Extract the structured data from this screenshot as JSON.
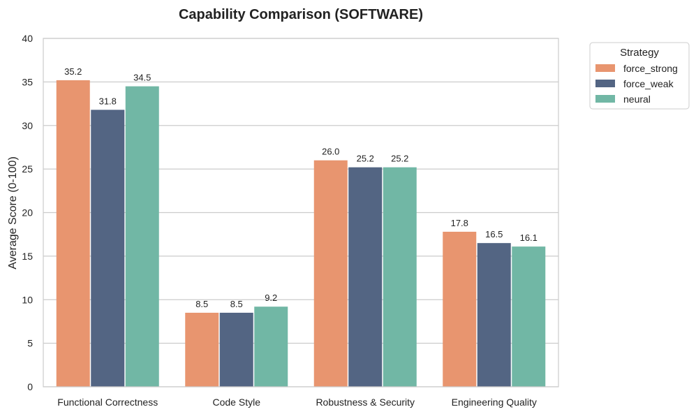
{
  "chart_data": {
    "type": "bar",
    "title": "Capability Comparison (SOFTWARE)",
    "xlabel": "",
    "ylabel": "Average Score (0-100)",
    "ylim": [
      0,
      40
    ],
    "yticks": [
      0,
      5,
      10,
      15,
      20,
      25,
      30,
      35,
      40
    ],
    "grid": true,
    "categories": [
      "Functional Correctness",
      "Code Style",
      "Robustness & Security",
      "Engineering Quality"
    ],
    "series": [
      {
        "name": "force_strong",
        "color": "#E8956F",
        "values": [
          35.2,
          8.5,
          26.0,
          17.8
        ],
        "labels": [
          "35.2",
          "8.5",
          "26.0",
          "17.8"
        ]
      },
      {
        "name": "force_weak",
        "color": "#536583",
        "values": [
          31.8,
          8.5,
          25.2,
          16.5
        ],
        "labels": [
          "31.8",
          "8.5",
          "25.2",
          "16.5"
        ]
      },
      {
        "name": "neural",
        "color": "#71B7A5",
        "values": [
          34.5,
          9.2,
          25.2,
          16.1
        ],
        "labels": [
          "34.5",
          "9.2",
          "25.2",
          "16.1"
        ]
      }
    ],
    "legend": {
      "title": "Strategy",
      "placement": "outside-top-right"
    }
  }
}
